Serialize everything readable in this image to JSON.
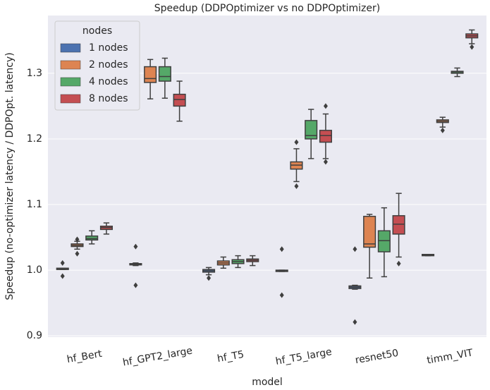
{
  "chart_data": {
    "type": "box",
    "title": "Speedup (DDPOptimizer vs no DDPOptimizer)",
    "x_label": "model",
    "y_label": "Speedup (no-optimizer latency / DDPOpt. latency)",
    "categories": [
      "hf_Bert",
      "hf_GPT2_large",
      "hf_T5",
      "hf_T5_large",
      "resnet50",
      "timm_VIT"
    ],
    "ylim": [
      0.898,
      1.388
    ],
    "yticks": [
      0.9,
      {
        "value": 1.0,
        "label": "1.0"
      },
      1.1,
      1.2,
      1.3
    ],
    "grid": true,
    "legend_title": "nodes",
    "legend_position": "upper-left",
    "series": [
      {
        "name": "1 nodes",
        "color": "#4c72b0",
        "boxes": [
          {
            "low": 1.001,
            "q1": 1.001,
            "median": 1.002,
            "q3": 1.003,
            "high": 1.003,
            "outliers": [
              0.991,
              1.011
            ]
          },
          {
            "low": 1.007,
            "q1": 1.008,
            "median": 1.009,
            "q3": 1.01,
            "high": 1.011,
            "outliers": [
              0.977,
              1.036
            ]
          },
          {
            "low": 0.993,
            "q1": 0.997,
            "median": 0.999,
            "q3": 1.001,
            "high": 1.004,
            "outliers": [
              0.988
            ]
          },
          {
            "low": 0.998,
            "q1": 0.998,
            "median": 0.999,
            "q3": 1.0,
            "high": 1.0,
            "outliers": [
              0.962,
              1.032
            ]
          },
          {
            "low": 0.971,
            "q1": 0.972,
            "median": 0.974,
            "q3": 0.976,
            "high": 0.977,
            "outliers": [
              0.921,
              1.032
            ]
          },
          {
            "low": 1.022,
            "q1": 1.022,
            "median": 1.023,
            "q3": 1.024,
            "high": 1.024,
            "outliers": []
          }
        ]
      },
      {
        "name": "2 nodes",
        "color": "#dd8452",
        "boxes": [
          {
            "low": 1.032,
            "q1": 1.036,
            "median": 1.038,
            "q3": 1.04,
            "high": 1.044,
            "outliers": [
              1.025,
              1.047
            ]
          },
          {
            "low": 1.261,
            "q1": 1.286,
            "median": 1.292,
            "q3": 1.31,
            "high": 1.321,
            "outliers": []
          },
          {
            "low": 1.003,
            "q1": 1.008,
            "median": 1.011,
            "q3": 1.014,
            "high": 1.02,
            "outliers": []
          },
          {
            "low": 1.135,
            "q1": 1.154,
            "median": 1.16,
            "q3": 1.165,
            "high": 1.185,
            "outliers": [
              1.128,
              1.195
            ]
          },
          {
            "low": 0.988,
            "q1": 1.035,
            "median": 1.04,
            "q3": 1.082,
            "high": 1.085,
            "outliers": []
          },
          {
            "low": 1.218,
            "q1": 1.225,
            "median": 1.227,
            "q3": 1.229,
            "high": 1.233,
            "outliers": [
              1.213
            ]
          }
        ]
      },
      {
        "name": "4 nodes",
        "color": "#55a868",
        "boxes": [
          {
            "low": 1.04,
            "q1": 1.046,
            "median": 1.048,
            "q3": 1.052,
            "high": 1.06,
            "outliers": []
          },
          {
            "low": 1.262,
            "q1": 1.288,
            "median": 1.295,
            "q3": 1.31,
            "high": 1.323,
            "outliers": []
          },
          {
            "low": 1.004,
            "q1": 1.01,
            "median": 1.013,
            "q3": 1.016,
            "high": 1.022,
            "outliers": []
          },
          {
            "low": 1.17,
            "q1": 1.2,
            "median": 1.205,
            "q3": 1.228,
            "high": 1.245,
            "outliers": []
          },
          {
            "low": 0.99,
            "q1": 1.028,
            "median": 1.045,
            "q3": 1.06,
            "high": 1.095,
            "outliers": []
          },
          {
            "low": 1.295,
            "q1": 1.3,
            "median": 1.302,
            "q3": 1.303,
            "high": 1.308,
            "outliers": []
          }
        ]
      },
      {
        "name": "8 nodes",
        "color": "#c44e52",
        "boxes": [
          {
            "low": 1.055,
            "q1": 1.062,
            "median": 1.065,
            "q3": 1.067,
            "high": 1.072,
            "outliers": []
          },
          {
            "low": 1.227,
            "q1": 1.25,
            "median": 1.26,
            "q3": 1.268,
            "high": 1.288,
            "outliers": []
          },
          {
            "low": 1.007,
            "q1": 1.013,
            "median": 1.015,
            "q3": 1.017,
            "high": 1.022,
            "outliers": []
          },
          {
            "low": 1.17,
            "q1": 1.195,
            "median": 1.205,
            "q3": 1.213,
            "high": 1.238,
            "outliers": [
              1.165,
              1.25
            ]
          },
          {
            "low": 1.02,
            "q1": 1.055,
            "median": 1.07,
            "q3": 1.083,
            "high": 1.117,
            "outliers": [
              1.01
            ]
          },
          {
            "low": 1.345,
            "q1": 1.354,
            "median": 1.357,
            "q3": 1.36,
            "high": 1.366,
            "outliers": [
              1.34
            ]
          }
        ]
      }
    ]
  }
}
